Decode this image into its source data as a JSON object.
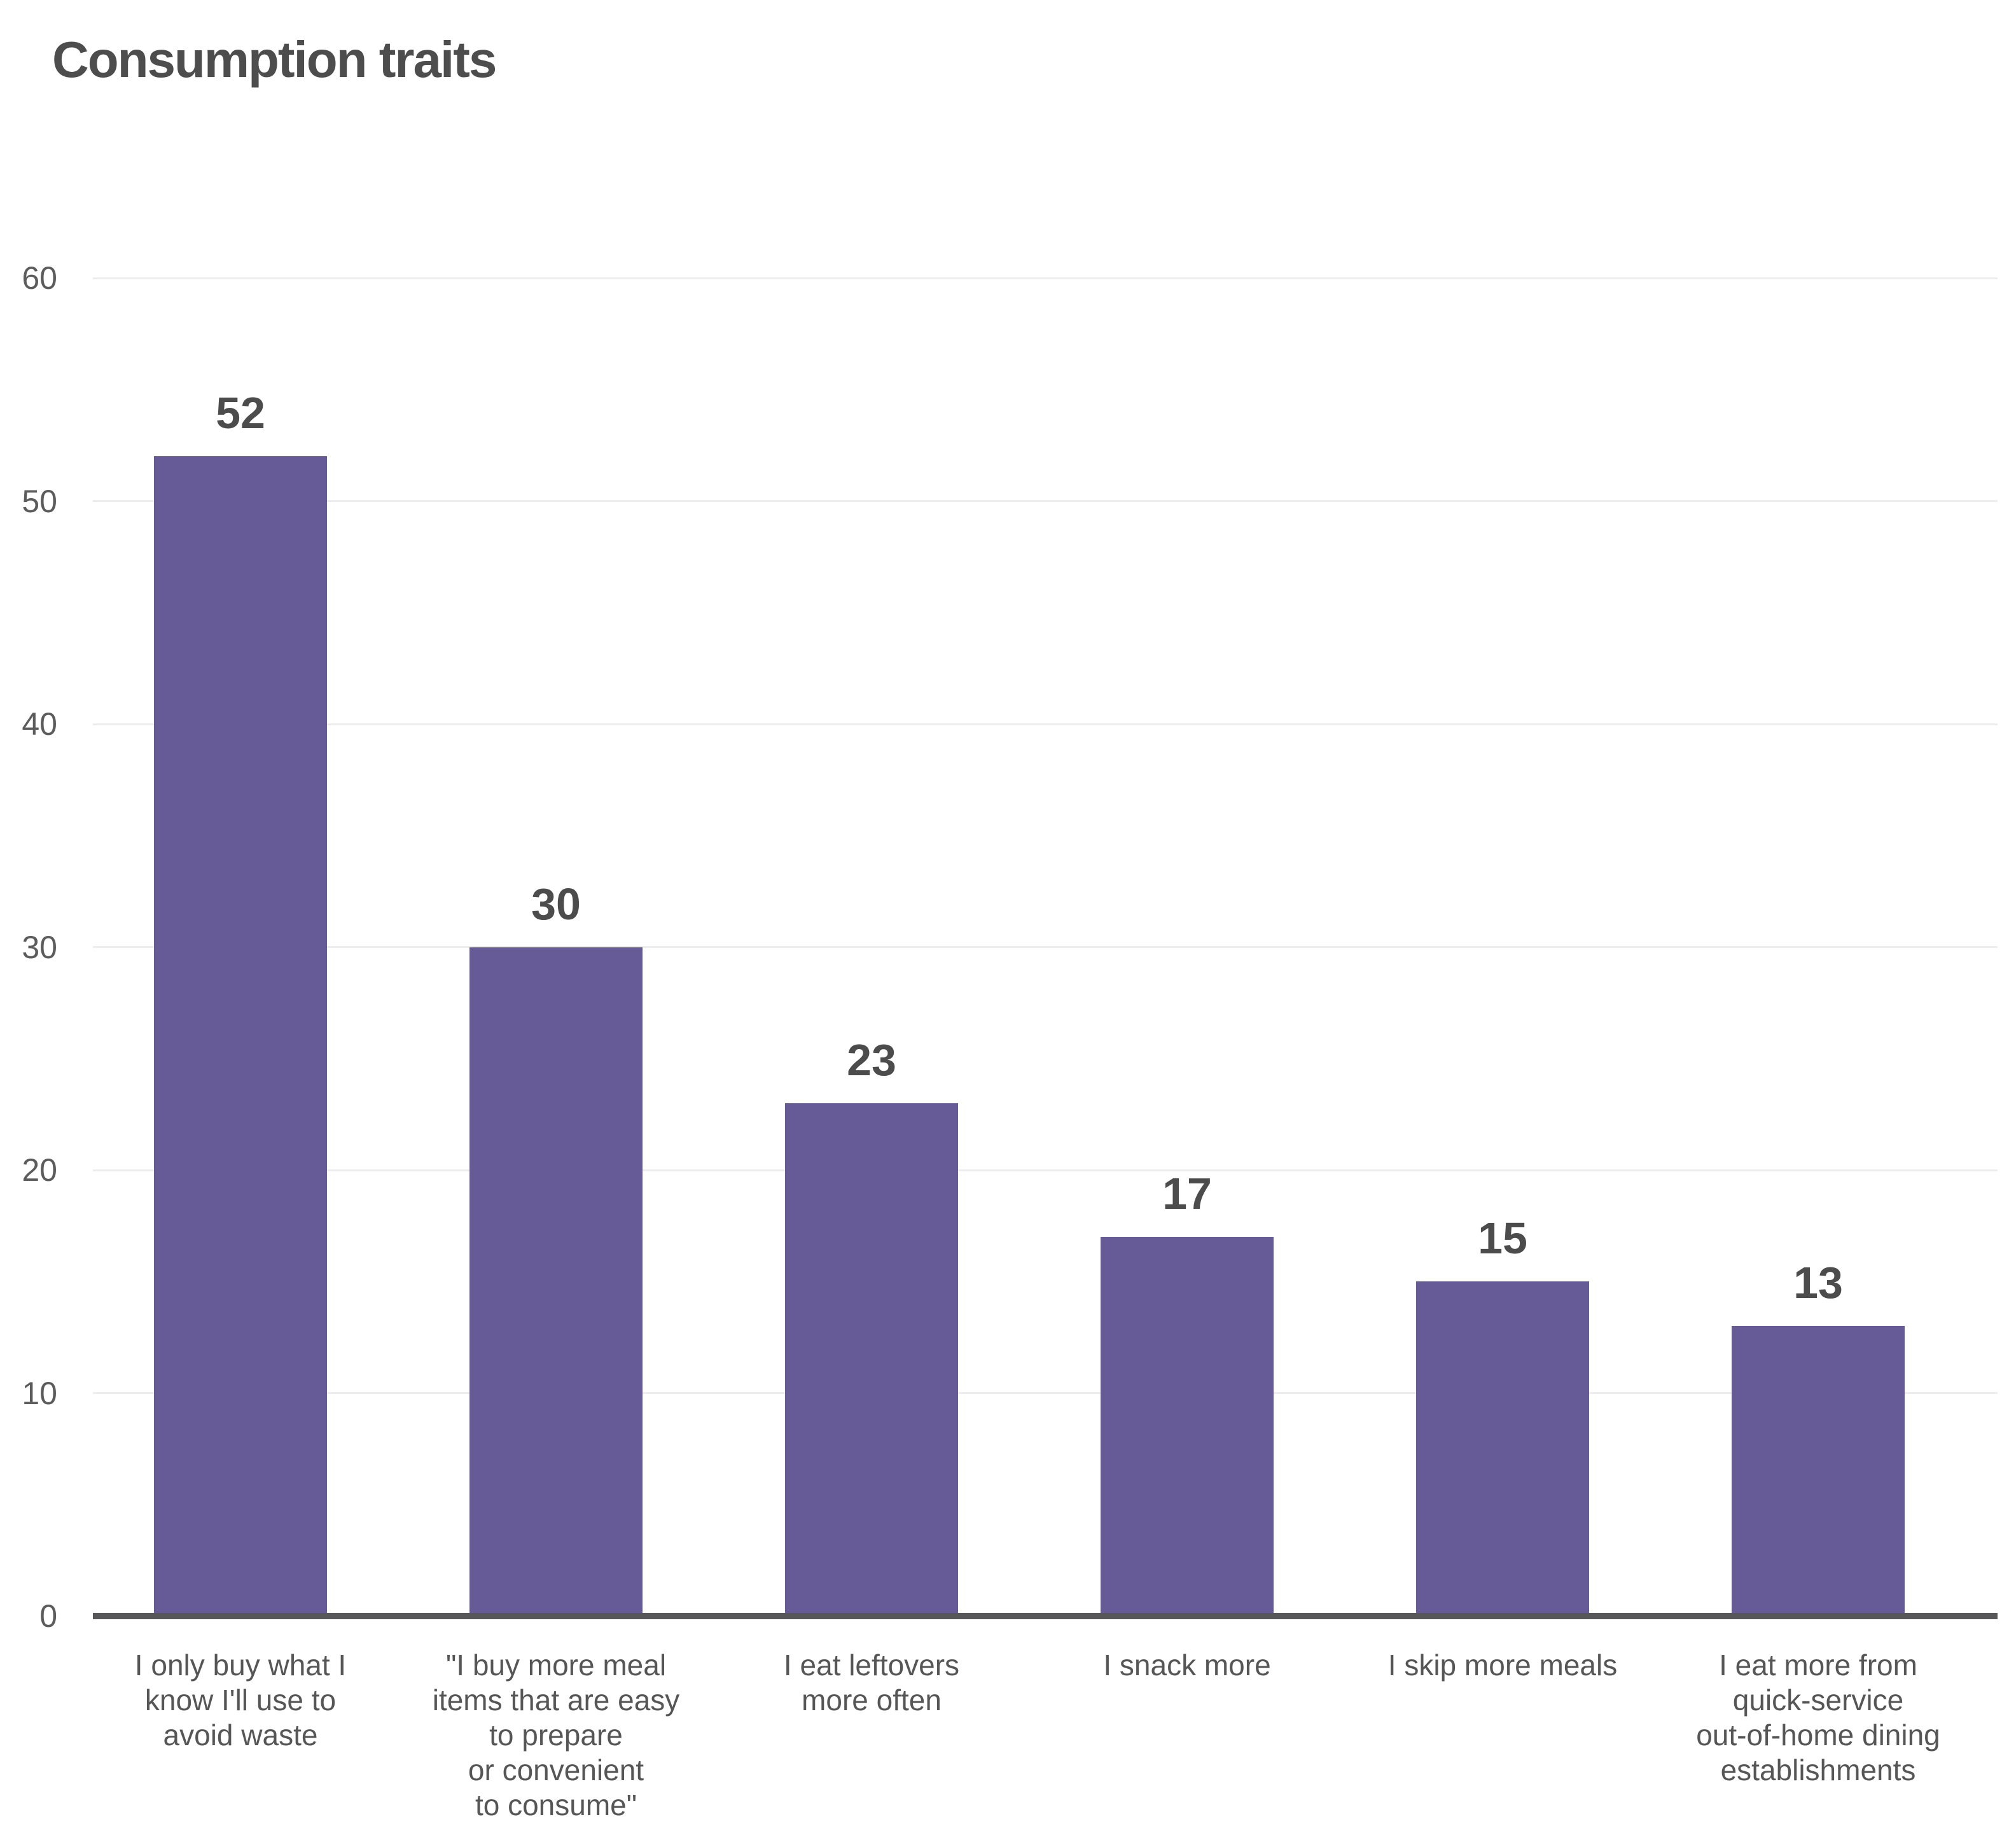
{
  "chart": {
    "title": "Consumption traits"
  },
  "chart_data": {
    "type": "bar",
    "title": "Consumption traits",
    "categories": [
      "I only buy what I\nknow I'll use to\navoid waste",
      "\"I buy more meal\nitems that are easy\nto prepare\nor convenient\nto consume\"",
      "I eat leftovers\nmore often",
      "I snack more",
      "I skip more meals",
      "I eat more from\nquick-service\nout-of-home dining\nestablishments"
    ],
    "values": [
      52,
      30,
      23,
      17,
      15,
      13
    ],
    "value_labels": [
      "52",
      "30",
      "23",
      "17",
      "15",
      "13"
    ],
    "xlabel": "",
    "ylabel": "",
    "ylim": [
      0,
      60
    ],
    "yticks": [
      0,
      10,
      20,
      30,
      40,
      50,
      60
    ],
    "ytick_labels": [
      "0",
      "10",
      "20",
      "30",
      "40",
      "50",
      "60"
    ],
    "grid": true,
    "legend": false,
    "colors": {
      "bar": "#665b96",
      "gridline": "#ededed",
      "axis_line": "#57575a",
      "title_text": "#4d4d4d",
      "value_label_text": "#4c4c4c",
      "tick_label_text": "#5c5c5c",
      "background": "#ffffff"
    }
  }
}
